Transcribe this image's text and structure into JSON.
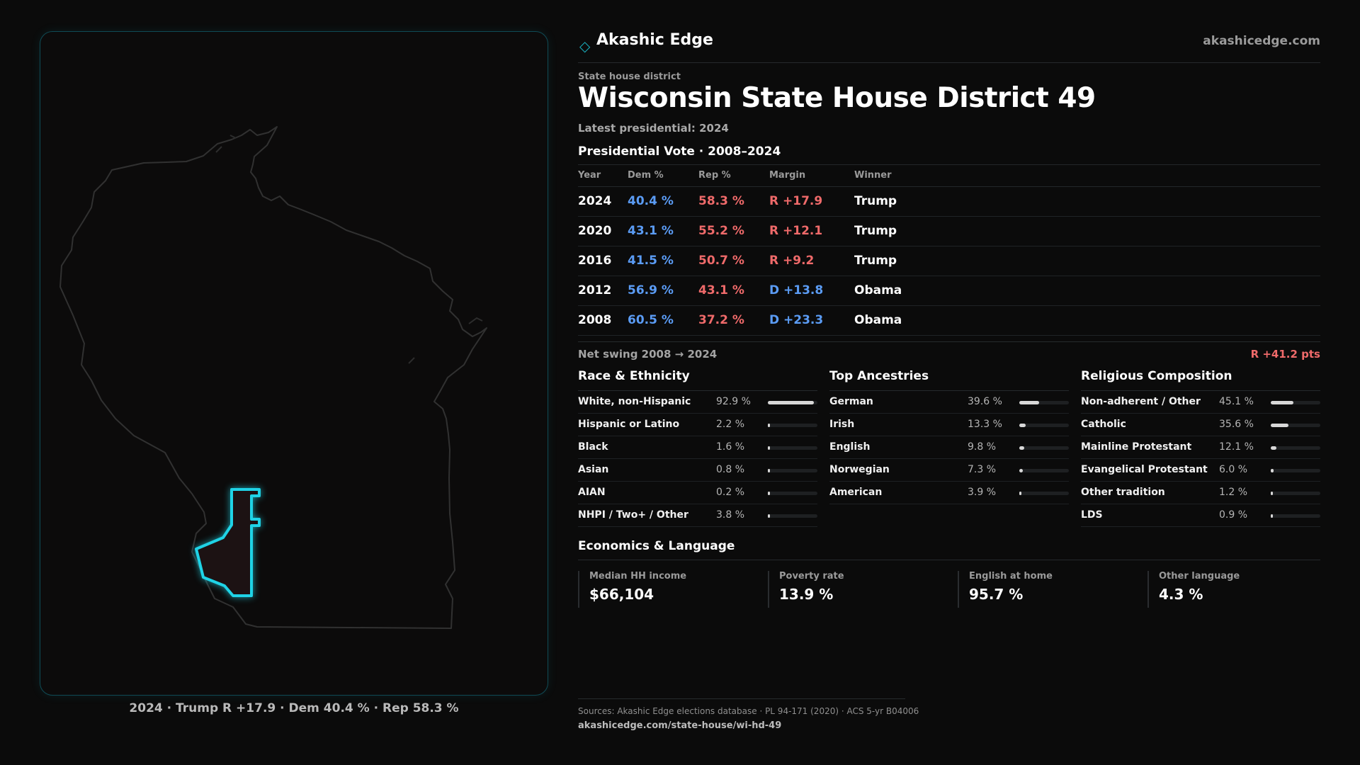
{
  "brand": {
    "name": "Akashic Edge",
    "url": "akashicedge.com",
    "logo_icon": "diamond-icon",
    "accent": "#1aa9b8"
  },
  "district": {
    "eyebrow": "State house district",
    "title": "Wisconsin State House District 49",
    "subtitle": "Latest presidential: 2024"
  },
  "map": {
    "caption": "2024 · Trump R +17.9 · Dem 40.4 % · Rep 58.3 %",
    "highlight_color": "#1fd3e6"
  },
  "vote": {
    "title": "Presidential Vote · 2008–2024",
    "headers": {
      "year": "Year",
      "dem": "Dem %",
      "rep": "Rep %",
      "margin": "Margin",
      "winner": "Winner"
    },
    "rows": [
      {
        "year": "2024",
        "dem": "40.4 %",
        "rep": "58.3 %",
        "margin": "R +17.9",
        "party": "R",
        "winner": "Trump"
      },
      {
        "year": "2020",
        "dem": "43.1 %",
        "rep": "55.2 %",
        "margin": "R +12.1",
        "party": "R",
        "winner": "Trump"
      },
      {
        "year": "2016",
        "dem": "41.5 %",
        "rep": "50.7 %",
        "margin": "R +9.2",
        "party": "R",
        "winner": "Trump"
      },
      {
        "year": "2012",
        "dem": "56.9 %",
        "rep": "43.1 %",
        "margin": "D +13.8",
        "party": "D",
        "winner": "Obama"
      },
      {
        "year": "2008",
        "dem": "60.5 %",
        "rep": "37.2 %",
        "margin": "D +23.3",
        "party": "D",
        "winner": "Obama"
      }
    ],
    "net_swing_label": "Net swing 2008 → 2024",
    "net_swing_value": "R +41.2 pts"
  },
  "race": {
    "title": "Race & Ethnicity",
    "items": [
      {
        "label": "White, non-Hispanic",
        "pct": "92.9 %",
        "value": 92.9
      },
      {
        "label": "Hispanic or Latino",
        "pct": "2.2 %",
        "value": 2.2
      },
      {
        "label": "Black",
        "pct": "1.6 %",
        "value": 1.6
      },
      {
        "label": "Asian",
        "pct": "0.8 %",
        "value": 0.8
      },
      {
        "label": "AIAN",
        "pct": "0.2 %",
        "value": 0.2
      },
      {
        "label": "NHPI / Two+ / Other",
        "pct": "3.8 %",
        "value": 3.8
      }
    ]
  },
  "ancestry": {
    "title": "Top Ancestries",
    "items": [
      {
        "label": "German",
        "pct": "39.6 %",
        "value": 39.6
      },
      {
        "label": "Irish",
        "pct": "13.3 %",
        "value": 13.3
      },
      {
        "label": "English",
        "pct": "9.8 %",
        "value": 9.8
      },
      {
        "label": "Norwegian",
        "pct": "7.3 %",
        "value": 7.3
      },
      {
        "label": "American",
        "pct": "3.9 %",
        "value": 3.9
      }
    ]
  },
  "religion": {
    "title": "Religious Composition",
    "items": [
      {
        "label": "Non-adherent / Other",
        "pct": "45.1 %",
        "value": 45.1
      },
      {
        "label": "Catholic",
        "pct": "35.6 %",
        "value": 35.6
      },
      {
        "label": "Mainline Protestant",
        "pct": "12.1 %",
        "value": 12.1
      },
      {
        "label": "Evangelical Protestant",
        "pct": "6.0 %",
        "value": 6.0
      },
      {
        "label": "Other tradition",
        "pct": "1.2 %",
        "value": 1.2
      },
      {
        "label": "LDS",
        "pct": "0.9 %",
        "value": 0.9
      }
    ]
  },
  "economics": {
    "title": "Economics & Language",
    "items": [
      {
        "label": "Median HH income",
        "value": "$66,104"
      },
      {
        "label": "Poverty rate",
        "value": "13.9 %"
      },
      {
        "label": "English at home",
        "value": "95.7 %"
      },
      {
        "label": "Other language",
        "value": "4.3 %"
      }
    ]
  },
  "footer": {
    "sources": "Sources: Akashic Edge elections database · PL 94-171 (2020) · ACS 5-yr B04006",
    "link": "akashicedge.com/state-house/wi-hd-49"
  }
}
